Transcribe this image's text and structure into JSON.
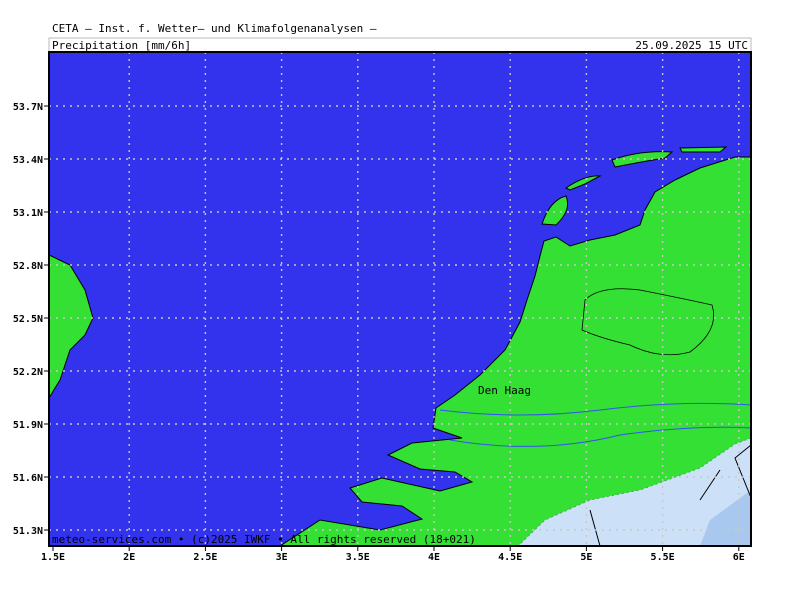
{
  "header": {
    "title": "CETA – Inst. f. Wetter– und Klimafolgenanalysen –",
    "variable": "Precipitation [mm/6h]",
    "datetime": "25.09.2025 15 UTC"
  },
  "map": {
    "lat_labels": [
      "53.7N",
      "53.4N",
      "53.1N",
      "52.8N",
      "52.5N",
      "52.2N",
      "51.9N",
      "51.6N",
      "51.3N"
    ],
    "lon_labels": [
      "1.5E",
      "2E",
      "2.5E",
      "3E",
      "3.5E",
      "4E",
      "4.5E",
      "5E",
      "5.5E",
      "6E"
    ],
    "city": "Den Haag"
  },
  "footer": "meteo-services.com • (c)2025 IWKF • All rights reserved (18+021)"
}
